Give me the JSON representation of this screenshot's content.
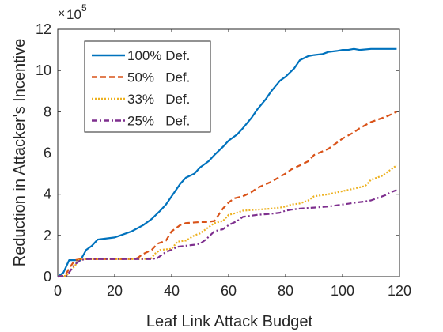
{
  "chart_data": {
    "type": "line",
    "xlabel": "Leaf Link Attack Budget",
    "ylabel": "Reduction in Attacker's Incentive",
    "y_multiplier_base": "10",
    "y_multiplier_exp": "5",
    "xlim": [
      0,
      120
    ],
    "ylim": [
      0,
      12
    ],
    "xticks": [
      "0",
      "20",
      "40",
      "60",
      "80",
      "100",
      "120"
    ],
    "yticks": [
      "0",
      "2",
      "4",
      "6",
      "8",
      "10",
      "12"
    ],
    "grid": false,
    "legend_position": "top-left",
    "series": [
      {
        "name": "100% Def.",
        "color": "#0072BD",
        "dash": "solid",
        "x": [
          0,
          2,
          3,
          4,
          5,
          6,
          8,
          10,
          12,
          14,
          20,
          22,
          26,
          30,
          33,
          36,
          38,
          40,
          43,
          45,
          48,
          50,
          53,
          55,
          58,
          60,
          63,
          65,
          68,
          70,
          73,
          75,
          78,
          80,
          83,
          85,
          88,
          90,
          93,
          95,
          98,
          100,
          102,
          104,
          106,
          110,
          115,
          119
        ],
        "values": [
          0,
          0.2,
          0.5,
          0.8,
          0.8,
          0.8,
          0.8,
          1.3,
          1.5,
          1.8,
          1.9,
          2.0,
          2.2,
          2.5,
          2.8,
          3.2,
          3.5,
          3.9,
          4.5,
          4.8,
          5.0,
          5.3,
          5.6,
          5.9,
          6.3,
          6.6,
          6.9,
          7.2,
          7.7,
          8.1,
          8.6,
          9.0,
          9.5,
          9.7,
          10.1,
          10.5,
          10.7,
          10.75,
          10.8,
          10.9,
          10.95,
          11.0,
          11.0,
          11.05,
          11.0,
          11.05,
          11.05,
          11.05
        ]
      },
      {
        "name": "50%   Def.",
        "color": "#D95319",
        "dash": "dashed",
        "x": [
          0,
          2,
          3,
          4,
          5,
          6,
          8,
          10,
          15,
          20,
          25,
          28,
          30,
          33,
          35,
          38,
          40,
          43,
          45,
          50,
          52,
          55,
          58,
          60,
          62,
          65,
          68,
          70,
          75,
          78,
          80,
          82,
          85,
          88,
          90,
          95,
          98,
          100,
          104,
          106,
          110,
          114,
          116,
          119
        ],
        "values": [
          0,
          0.05,
          0.15,
          0.4,
          0.6,
          0.8,
          0.85,
          0.85,
          0.85,
          0.85,
          0.85,
          0.9,
          1.1,
          1.3,
          1.6,
          1.75,
          2.2,
          2.5,
          2.6,
          2.65,
          2.65,
          2.7,
          3.3,
          3.6,
          3.8,
          3.9,
          4.1,
          4.3,
          4.6,
          4.85,
          5.0,
          5.2,
          5.4,
          5.6,
          5.9,
          6.2,
          6.5,
          6.7,
          7.0,
          7.2,
          7.5,
          7.7,
          7.8,
          8.0
        ]
      },
      {
        "name": "33%   Def.",
        "color": "#EDB120",
        "dash": "dotted",
        "x": [
          0,
          3,
          4,
          5,
          6,
          7,
          9,
          12,
          20,
          25,
          30,
          33,
          34,
          36,
          40,
          42,
          45,
          48,
          50,
          52,
          55,
          58,
          60,
          63,
          65,
          70,
          75,
          78,
          80,
          82,
          85,
          88,
          90,
          95,
          100,
          105,
          108,
          110,
          112,
          114,
          116,
          118,
          119
        ],
        "values": [
          0,
          0.05,
          0.2,
          0.4,
          0.5,
          0.8,
          0.85,
          0.85,
          0.85,
          0.85,
          0.85,
          0.9,
          1.1,
          1.3,
          1.35,
          1.7,
          1.75,
          2.0,
          2.1,
          2.3,
          2.6,
          2.7,
          3.0,
          3.1,
          3.2,
          3.25,
          3.3,
          3.35,
          3.4,
          3.5,
          3.55,
          3.7,
          3.9,
          4.0,
          4.15,
          4.3,
          4.4,
          4.7,
          4.8,
          4.9,
          5.1,
          5.3,
          5.4
        ]
      },
      {
        "name": "25%   Def.",
        "color": "#7E2F8E",
        "dash": "dashdot",
        "x": [
          0,
          3,
          4,
          5,
          6,
          8,
          10,
          15,
          20,
          30,
          33,
          35,
          38,
          40,
          42,
          45,
          48,
          50,
          52,
          55,
          58,
          60,
          63,
          65,
          70,
          75,
          78,
          80,
          82,
          85,
          90,
          95,
          100,
          105,
          108,
          110,
          112,
          115,
          117,
          119
        ],
        "values": [
          0,
          0.05,
          0.2,
          0.4,
          0.6,
          0.8,
          0.85,
          0.85,
          0.85,
          0.85,
          0.85,
          0.9,
          1.2,
          1.3,
          1.45,
          1.5,
          1.55,
          1.6,
          1.8,
          2.2,
          2.3,
          2.5,
          2.7,
          2.9,
          3.0,
          3.05,
          3.1,
          3.2,
          3.25,
          3.3,
          3.35,
          3.4,
          3.5,
          3.6,
          3.65,
          3.7,
          3.8,
          3.95,
          4.1,
          4.2
        ]
      }
    ]
  }
}
